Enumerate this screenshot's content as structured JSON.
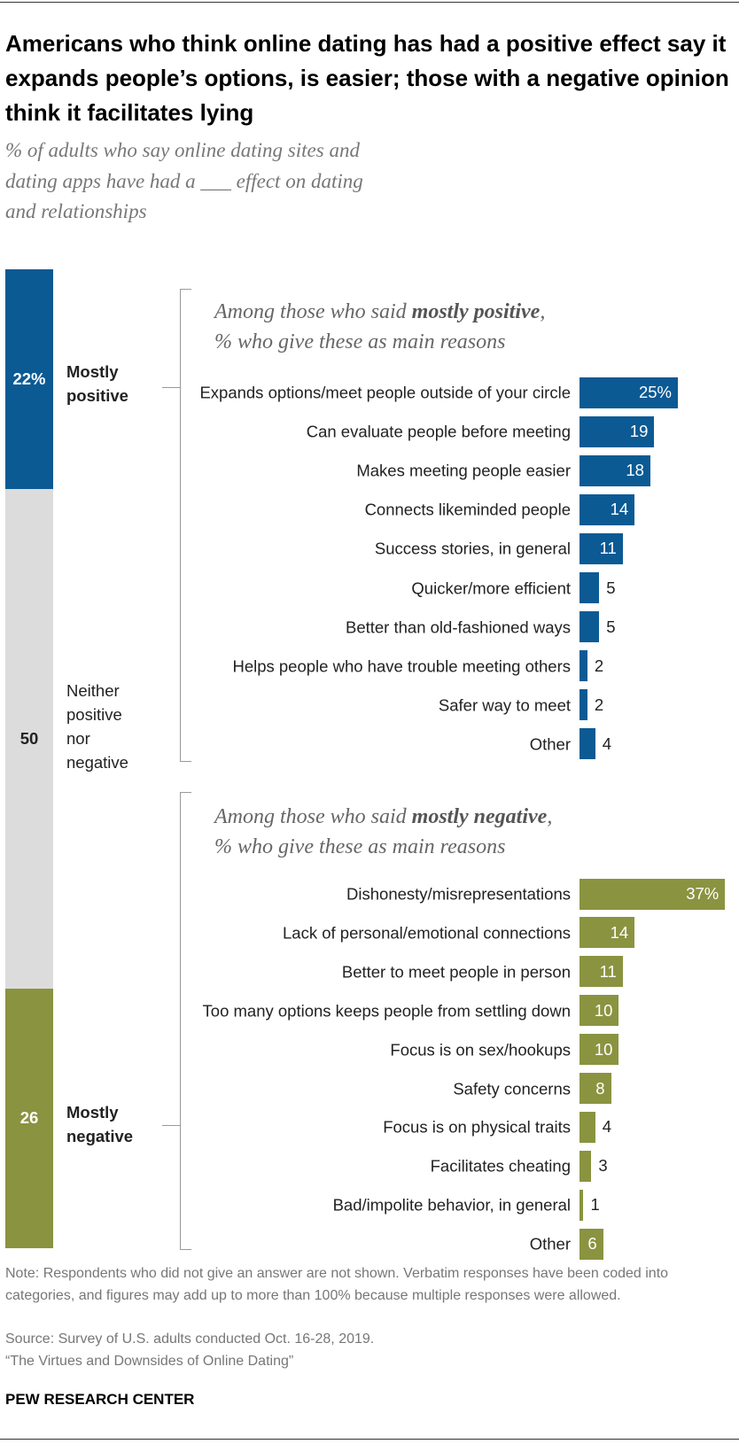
{
  "header": {
    "title": "Americans who think online dating has had a positive effect say it expands people’s options, is easier; those with a negative opinion think it facilitates lying",
    "subtitle": "% of adults who say online dating sites and dating apps have had a ___ effect on dating and relationships"
  },
  "chart_data": [
    {
      "type": "stacked_bar",
      "series": [
        {
          "name": "Mostly positive",
          "color": "#0b5a94",
          "values": [
            22
          ],
          "value_labels": [
            "22%"
          ]
        },
        {
          "name": "Neither positive nor negative",
          "color": "#dcdcdd",
          "values": [
            50
          ],
          "value_labels": [
            "50"
          ]
        },
        {
          "name": "Mostly negative",
          "color": "#8a9340",
          "values": [
            26
          ],
          "value_labels": [
            "26"
          ]
        }
      ]
    },
    {
      "type": "hbar",
      "title": [
        "Among those who said ",
        "mostly positive",
        ",",
        "% who give these as main reasons"
      ],
      "color": "#0b5a94",
      "categories": [
        "Expands options/meet people outside of your circle",
        "Can evaluate people before meeting",
        "Makes meeting people easier",
        "Connects likeminded people",
        "Success stories, in general",
        "Quicker/more efficient",
        "Better than old-fashioned ways",
        "Helps people who have trouble meeting others",
        "Safer way to meet",
        "Other"
      ],
      "values": [
        25,
        19,
        18,
        14,
        11,
        5,
        5,
        2,
        2,
        4
      ],
      "value_labels": [
        "25%",
        "19",
        "18",
        "14",
        "11",
        "5",
        "5",
        "2",
        "2",
        "4"
      ]
    },
    {
      "type": "hbar",
      "title": [
        "Among those who said ",
        "mostly negative",
        ",",
        "% who give these as main reasons"
      ],
      "color": "#8a9340",
      "categories": [
        "Dishonesty/misrepresentations",
        "Lack of personal/emotional connections",
        "Better to meet people in person",
        "Too many options keeps people from settling down",
        "Focus is on sex/hookups",
        "Safety concerns",
        "Focus is on physical traits",
        "Facilitates cheating",
        "Bad/impolite behavior, in general",
        "Other"
      ],
      "values": [
        37,
        14,
        11,
        10,
        10,
        8,
        4,
        3,
        1,
        6
      ],
      "value_labels": [
        "37%",
        "14",
        "11",
        "10",
        "10",
        "8",
        "4",
        "3",
        "1",
        "6"
      ]
    }
  ],
  "footer": {
    "note": "Note: Respondents who did not give an answer are not shown. Verbatim responses have been coded into categories, and figures may add up to more than 100% because multiple responses were allowed.",
    "source": "Source: Survey of U.S. adults conducted Oct. 16-28, 2019.",
    "report": "“The Virtues and Downsides of Online Dating”",
    "brand": "PEW RESEARCH CENTER"
  }
}
